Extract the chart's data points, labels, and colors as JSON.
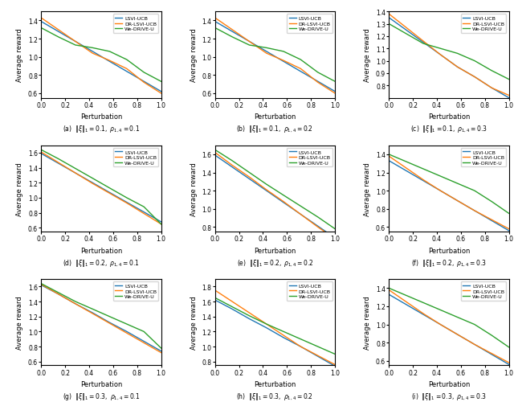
{
  "subplots": [
    {
      "xi": 0.1,
      "rho": 0.1,
      "label": "(a)",
      "ylim": [
        0.55,
        1.5
      ],
      "yticks": [
        0.6,
        0.8,
        1.0,
        1.2,
        1.4
      ],
      "lsvi": [
        1.39,
        1.28,
        1.17,
        1.06,
        0.95,
        0.84,
        0.73,
        0.62
      ],
      "dr_lsvi": [
        1.43,
        1.3,
        1.17,
        1.04,
        0.96,
        0.87,
        0.72,
        0.6
      ],
      "we_drive": [
        1.32,
        1.22,
        1.13,
        1.1,
        1.06,
        0.97,
        0.83,
        0.73
      ]
    },
    {
      "xi": 0.1,
      "rho": 0.2,
      "label": "(b)",
      "ylim": [
        0.55,
        1.5
      ],
      "yticks": [
        0.6,
        0.8,
        1.0,
        1.2,
        1.4
      ],
      "lsvi": [
        1.39,
        1.28,
        1.17,
        1.06,
        0.95,
        0.84,
        0.73,
        0.62
      ],
      "dr_lsvi": [
        1.43,
        1.3,
        1.17,
        1.04,
        0.96,
        0.87,
        0.72,
        0.6
      ],
      "we_drive": [
        1.32,
        1.22,
        1.13,
        1.1,
        1.06,
        0.97,
        0.83,
        0.73
      ]
    },
    {
      "xi": 0.1,
      "rho": 0.3,
      "label": "(c)",
      "ylim": [
        0.7,
        1.4
      ],
      "yticks": [
        0.8,
        0.9,
        1.0,
        1.1,
        1.2,
        1.3,
        1.4
      ],
      "lsvi": [
        1.35,
        1.25,
        1.15,
        1.05,
        0.95,
        0.87,
        0.78,
        0.7
      ],
      "dr_lsvi": [
        1.38,
        1.27,
        1.16,
        1.05,
        0.95,
        0.87,
        0.78,
        0.72
      ],
      "we_drive": [
        1.3,
        1.22,
        1.14,
        1.1,
        1.06,
        1.0,
        0.92,
        0.85
      ]
    },
    {
      "xi": 0.2,
      "rho": 0.1,
      "label": "(d)",
      "ylim": [
        0.55,
        1.7
      ],
      "yticks": [
        0.6,
        0.8,
        1.0,
        1.2,
        1.4,
        1.6
      ],
      "lsvi": [
        1.59,
        1.46,
        1.33,
        1.2,
        1.07,
        0.94,
        0.81,
        0.68
      ],
      "dr_lsvi": [
        1.61,
        1.47,
        1.33,
        1.19,
        1.06,
        0.93,
        0.79,
        0.65
      ],
      "we_drive": [
        1.64,
        1.52,
        1.39,
        1.26,
        1.13,
        1.0,
        0.88,
        0.65
      ]
    },
    {
      "xi": 0.2,
      "rho": 0.2,
      "label": "(e)",
      "ylim": [
        0.75,
        1.7
      ],
      "yticks": [
        0.8,
        1.0,
        1.2,
        1.4,
        1.6
      ],
      "lsvi": [
        1.59,
        1.46,
        1.33,
        1.2,
        1.07,
        0.94,
        0.81,
        0.68
      ],
      "dr_lsvi": [
        1.62,
        1.48,
        1.35,
        1.21,
        1.08,
        0.94,
        0.8,
        0.67
      ],
      "we_drive": [
        1.65,
        1.53,
        1.4,
        1.27,
        1.15,
        1.03,
        0.91,
        0.78
      ]
    },
    {
      "xi": 0.2,
      "rho": 0.3,
      "label": "(f)",
      "ylim": [
        0.55,
        1.5
      ],
      "yticks": [
        0.6,
        0.8,
        1.0,
        1.2,
        1.4
      ],
      "lsvi": [
        1.33,
        1.22,
        1.11,
        1.0,
        0.89,
        0.78,
        0.67,
        0.56
      ],
      "dr_lsvi": [
        1.38,
        1.25,
        1.12,
        1.0,
        0.89,
        0.78,
        0.68,
        0.58
      ],
      "we_drive": [
        1.4,
        1.32,
        1.24,
        1.16,
        1.08,
        1.0,
        0.88,
        0.75
      ]
    },
    {
      "xi": 0.3,
      "rho": 0.1,
      "label": "(g)",
      "ylim": [
        0.55,
        1.7
      ],
      "yticks": [
        0.6,
        0.8,
        1.0,
        1.2,
        1.4,
        1.6
      ],
      "lsvi": [
        1.62,
        1.5,
        1.37,
        1.25,
        1.12,
        1.0,
        0.87,
        0.74
      ],
      "dr_lsvi": [
        1.63,
        1.5,
        1.37,
        1.24,
        1.11,
        0.98,
        0.85,
        0.72
      ],
      "we_drive": [
        1.64,
        1.52,
        1.4,
        1.3,
        1.2,
        1.1,
        1.0,
        0.78
      ]
    },
    {
      "xi": 0.3,
      "rho": 0.2,
      "label": "(h)",
      "ylim": [
        0.75,
        1.9
      ],
      "yticks": [
        0.8,
        1.0,
        1.2,
        1.4,
        1.6,
        1.8
      ],
      "lsvi": [
        1.62,
        1.5,
        1.37,
        1.25,
        1.12,
        1.0,
        0.87,
        0.74
      ],
      "dr_lsvi": [
        1.75,
        1.6,
        1.45,
        1.3,
        1.15,
        1.0,
        0.88,
        0.76
      ],
      "we_drive": [
        1.65,
        1.53,
        1.41,
        1.3,
        1.2,
        1.1,
        1.0,
        0.9
      ]
    },
    {
      "xi": 0.3,
      "rho": 0.3,
      "label": "(i)",
      "ylim": [
        0.55,
        1.5
      ],
      "yticks": [
        0.6,
        0.8,
        1.0,
        1.2,
        1.4
      ],
      "lsvi": [
        1.33,
        1.22,
        1.11,
        1.0,
        0.89,
        0.78,
        0.67,
        0.56
      ],
      "dr_lsvi": [
        1.38,
        1.25,
        1.12,
        1.0,
        0.89,
        0.78,
        0.68,
        0.58
      ],
      "we_drive": [
        1.4,
        1.32,
        1.24,
        1.16,
        1.08,
        1.0,
        0.88,
        0.75
      ]
    }
  ],
  "x": [
    0.0,
    0.143,
    0.286,
    0.429,
    0.571,
    0.714,
    0.857,
    1.0
  ],
  "colors": {
    "lsvi": "#1f77b4",
    "dr_lsvi": "#ff7f0e",
    "we_drive": "#2ca02c"
  },
  "legend_labels": [
    "LSVI-UCB",
    "DR-LSVI-UCB",
    "We-DRIVE-U"
  ],
  "xlabel": "Perturbation",
  "ylabel": "Average reward"
}
